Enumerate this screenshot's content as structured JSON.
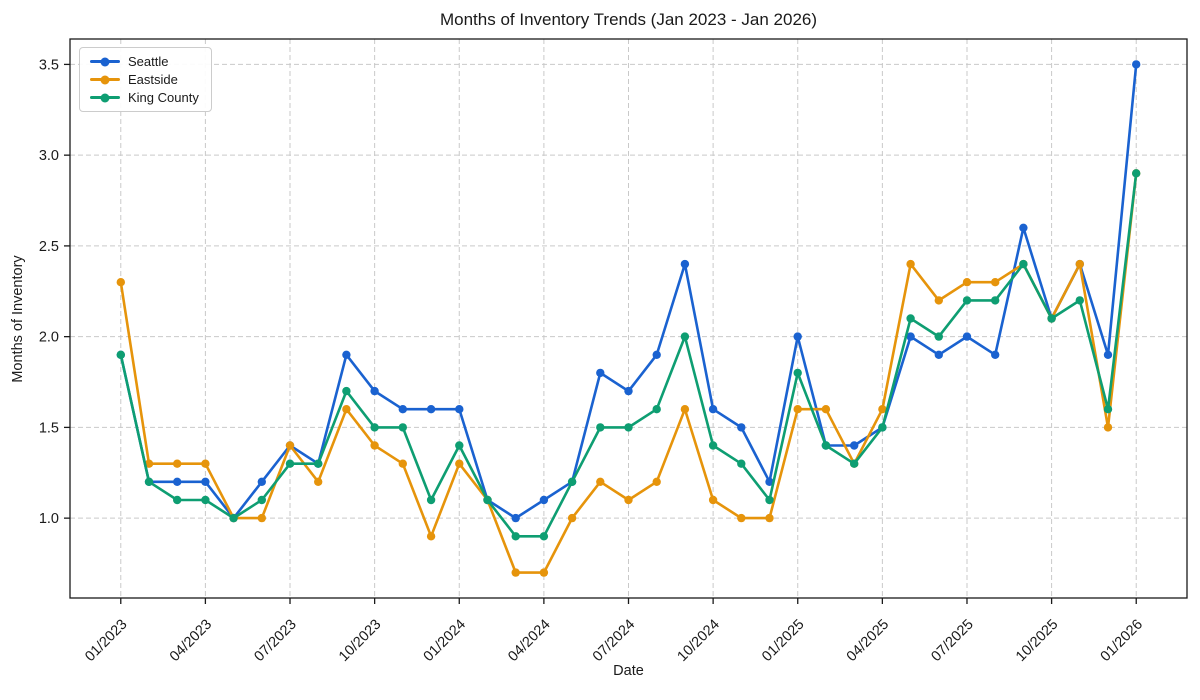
{
  "chart_data": {
    "type": "line",
    "title": "Months of Inventory Trends (Jan 2023 - Jan 2026)",
    "xlabel": "Date",
    "ylabel": "Months of Inventory",
    "x": [
      "01/2023",
      "02/2023",
      "03/2023",
      "04/2023",
      "05/2023",
      "06/2023",
      "07/2023",
      "08/2023",
      "09/2023",
      "10/2023",
      "11/2023",
      "12/2023",
      "01/2024",
      "02/2024",
      "03/2024",
      "04/2024",
      "05/2024",
      "06/2024",
      "07/2024",
      "08/2024",
      "09/2024",
      "10/2024",
      "11/2024",
      "12/2024",
      "01/2025",
      "02/2025",
      "03/2025",
      "04/2025",
      "05/2025",
      "06/2025",
      "07/2025",
      "08/2025",
      "09/2025",
      "10/2025",
      "11/2025",
      "12/2025",
      "01/2026"
    ],
    "xtick_labels": [
      "01/2023",
      "04/2023",
      "07/2023",
      "10/2023",
      "01/2024",
      "04/2024",
      "07/2024",
      "10/2024",
      "01/2025",
      "04/2025",
      "07/2025",
      "10/2025",
      "01/2026"
    ],
    "xtick_every": 3,
    "yticks": [
      "1.0",
      "1.5",
      "2.0",
      "2.5",
      "3.0",
      "3.5"
    ],
    "ylim": [
      0.56,
      3.64
    ],
    "grid": true,
    "grid_color": "#c9c9c9",
    "frame_color": "#1a1a1a",
    "tick_label_color": "#1a1a1a",
    "legend_position": "upper-left",
    "series": [
      {
        "name": "Seattle",
        "color": "#1a62d0",
        "values": [
          1.9,
          1.2,
          1.2,
          1.2,
          1.0,
          1.2,
          1.4,
          1.3,
          1.9,
          1.7,
          1.6,
          1.6,
          1.6,
          1.1,
          1.0,
          1.1,
          1.2,
          1.8,
          1.7,
          1.9,
          2.4,
          1.6,
          1.5,
          1.2,
          2.0,
          1.4,
          1.4,
          1.5,
          2.0,
          1.9,
          2.0,
          1.9,
          2.6,
          2.1,
          2.4,
          1.9,
          3.5
        ]
      },
      {
        "name": "Eastside",
        "color": "#e6940b",
        "values": [
          2.3,
          1.3,
          1.3,
          1.3,
          1.0,
          1.0,
          1.4,
          1.2,
          1.6,
          1.4,
          1.3,
          0.9,
          1.3,
          1.1,
          0.7,
          0.7,
          1.0,
          1.2,
          1.1,
          1.2,
          1.6,
          1.1,
          1.0,
          1.0,
          1.6,
          1.6,
          1.3,
          1.6,
          2.4,
          2.2,
          2.3,
          2.3,
          2.4,
          2.1,
          2.4,
          1.5,
          2.9
        ]
      },
      {
        "name": "King County",
        "color": "#0e9e72",
        "values": [
          1.9,
          1.2,
          1.1,
          1.1,
          1.0,
          1.1,
          1.3,
          1.3,
          1.7,
          1.5,
          1.5,
          1.1,
          1.4,
          1.1,
          0.9,
          0.9,
          1.2,
          1.5,
          1.5,
          1.6,
          2.0,
          1.4,
          1.3,
          1.1,
          1.8,
          1.4,
          1.3,
          1.5,
          2.1,
          2.0,
          2.2,
          2.2,
          2.4,
          2.1,
          2.2,
          1.6,
          2.9
        ]
      }
    ]
  }
}
